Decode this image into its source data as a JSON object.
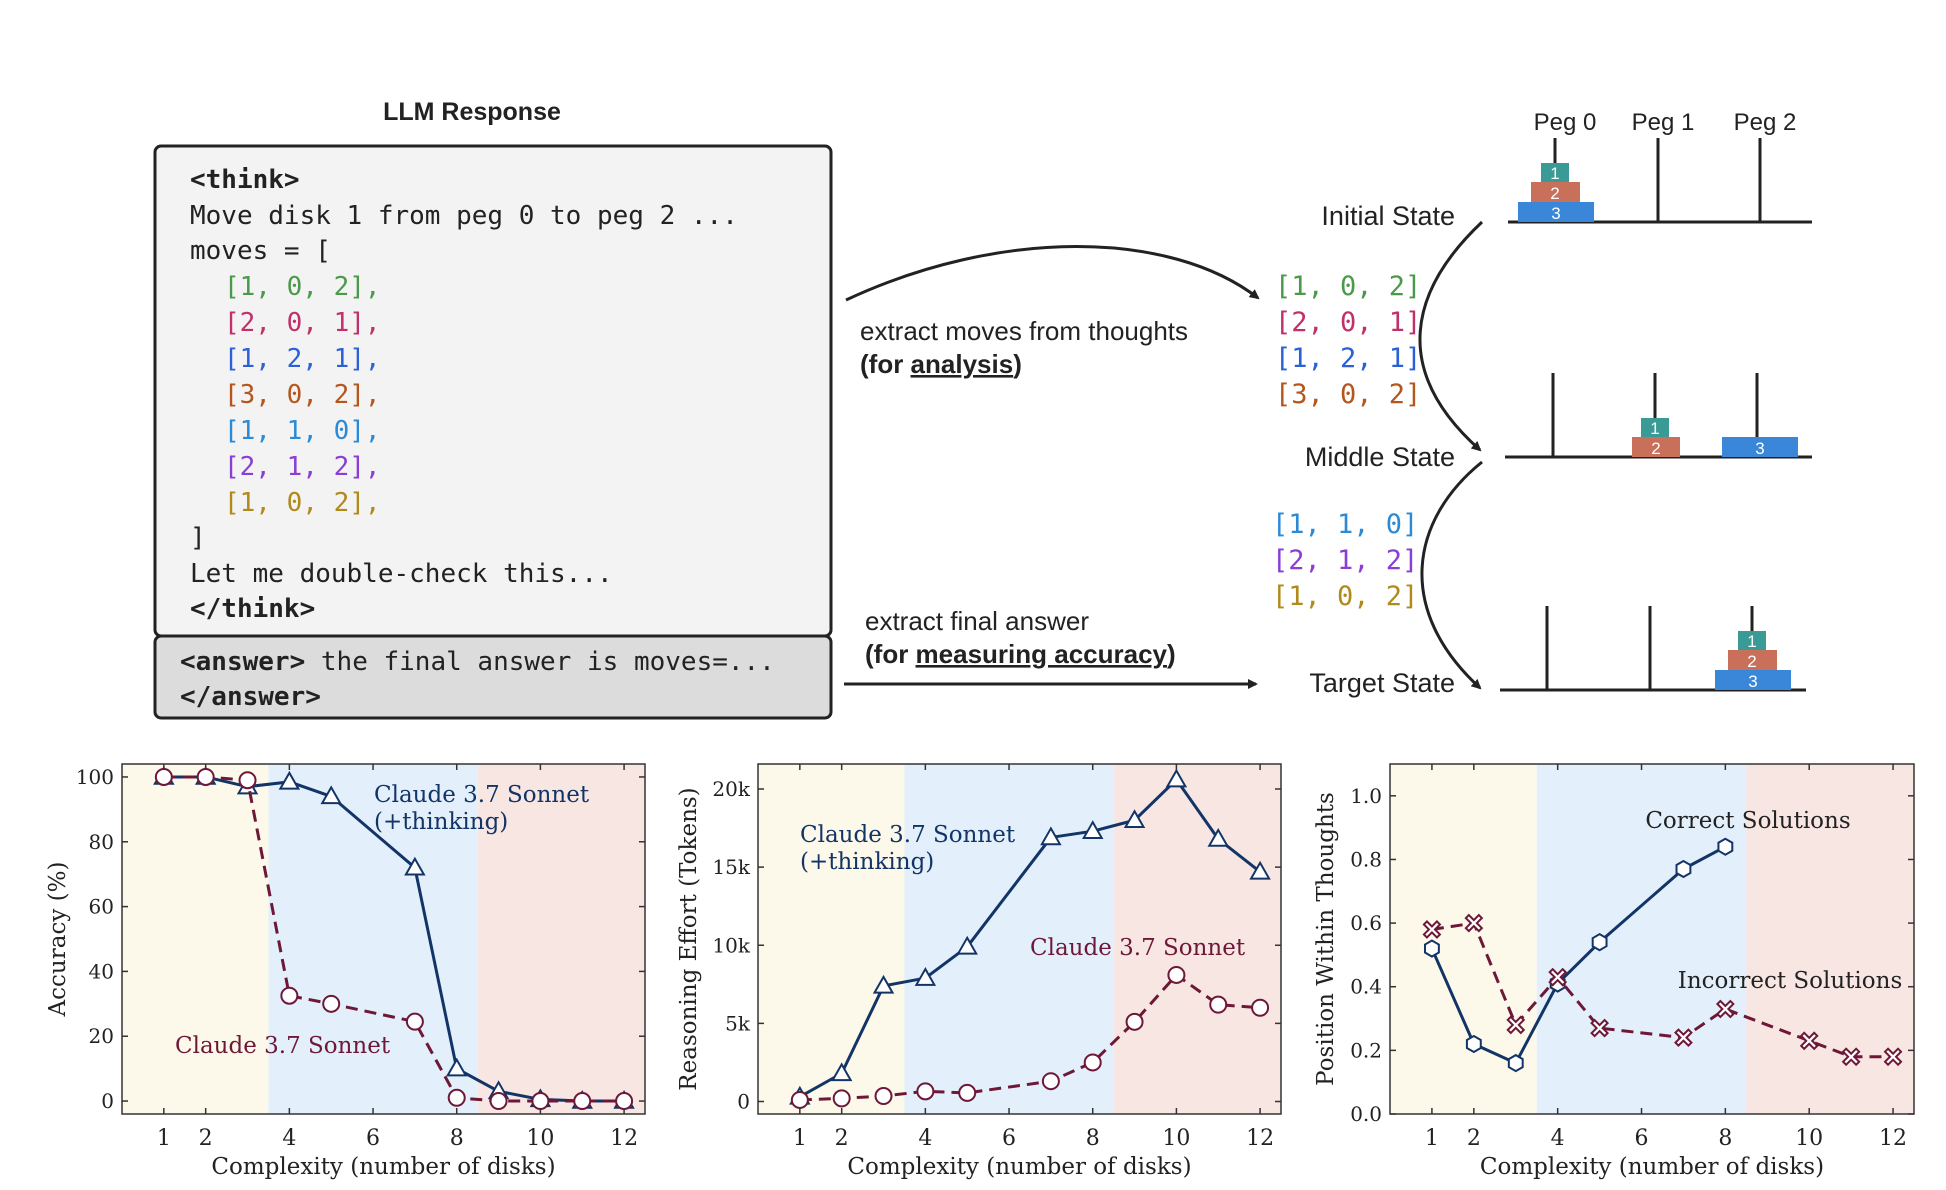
{
  "diagram": {
    "title": "LLM Response",
    "think_open": "<think>",
    "think_line1": "Move disk 1 from peg 0 to peg 2 ...",
    "moves_open": "moves = [",
    "moves": [
      {
        "text": "[1, 0, 2],",
        "color": "#4a9a4a"
      },
      {
        "text": "[2, 0, 1],",
        "color": "#c0306a"
      },
      {
        "text": "[1, 2, 1],",
        "color": "#2a62d6"
      },
      {
        "text": "[3, 0, 2],",
        "color": "#b5561c"
      },
      {
        "text": "[1, 1, 0],",
        "color": "#2a8ad6"
      },
      {
        "text": "[2, 1, 2],",
        "color": "#8a3ed6"
      },
      {
        "text": "[1, 0, 2],",
        "color": "#b08a1a"
      }
    ],
    "moves_close": "]",
    "double_check": "Let me double-check this...",
    "think_close": "</think>",
    "answer_tag": "<answer>",
    "answer_text": " the final answer is moves=...",
    "answer_close": "</answer>",
    "extract_moves_line1": "extract moves  from thoughts",
    "extract_moves_prefix": "(for ",
    "extract_moves_underlined": "analysis",
    "extract_moves_suffix": ")",
    "extract_final_line1": "extract final answer",
    "extract_final_prefix": "(for ",
    "extract_final_underlined": "measuring accuracy",
    "extract_final_suffix": ")",
    "pegs": [
      "Peg 0",
      "Peg 1",
      "Peg 2"
    ],
    "states": [
      "Initial State",
      "Middle State",
      "Target State"
    ],
    "first_moves": [
      {
        "text": "[1, 0, 2]",
        "color": "#4a9a4a"
      },
      {
        "text": "[2, 0, 1]",
        "color": "#c0306a"
      },
      {
        "text": "[1, 2, 1]",
        "color": "#2a62d6"
      },
      {
        "text": "[3, 0, 2]",
        "color": "#b5561c"
      }
    ],
    "second_moves": [
      {
        "text": "[1, 1, 0]",
        "color": "#2a8ad6"
      },
      {
        "text": "[2, 1, 2]",
        "color": "#8a3ed6"
      },
      {
        "text": "[1, 0, 2]",
        "color": "#b08a1a"
      }
    ],
    "disk_labels": [
      "1",
      "2",
      "3"
    ],
    "disk_colors": [
      "#3a9a96",
      "#c8705a",
      "#3a86d8"
    ]
  },
  "colors": {
    "thinking_series": "#123466",
    "base_series": "#6e1838",
    "region_easy": "#fcf8ea",
    "region_medium": "#e3f0fb",
    "region_hard": "#f8e6e3"
  },
  "chart_data": [
    {
      "type": "line",
      "xlabel": "Complexity (number of disks)",
      "ylabel": "Accuracy (%)",
      "xlim": [
        0,
        12.5
      ],
      "ylim": [
        -4,
        104
      ],
      "xticks": [
        1,
        2,
        4,
        6,
        8,
        10,
        12
      ],
      "yticks": [
        0,
        20,
        40,
        60,
        80,
        100
      ],
      "ytick_labels": [
        "0",
        "20",
        "40",
        "60",
        "80",
        "100"
      ],
      "regions": [
        [
          0,
          3.5,
          "easy"
        ],
        [
          3.5,
          8.5,
          "medium"
        ],
        [
          8.5,
          12.5,
          "hard"
        ]
      ],
      "series": [
        {
          "name": "Claude 3.7 Sonnet (+thinking)",
          "label_lines": [
            "Claude 3.7 Sonnet",
            "(+thinking)"
          ],
          "style": "solid",
          "marker": "triangle",
          "x": [
            1,
            2,
            3,
            4,
            5,
            7,
            8,
            9,
            10,
            11,
            12
          ],
          "y": [
            100,
            100,
            97,
            98.5,
            94,
            72,
            10,
            3,
            0.5,
            0,
            0
          ]
        },
        {
          "name": "Claude 3.7 Sonnet",
          "label_lines": [
            "Claude 3.7 Sonnet"
          ],
          "style": "dashed",
          "marker": "circle",
          "x": [
            1,
            2,
            3,
            4,
            5,
            7,
            8,
            9,
            10,
            11,
            12
          ],
          "y": [
            100,
            100,
            99,
            32.5,
            30,
            24.5,
            1,
            0,
            0,
            0,
            0
          ]
        }
      ]
    },
    {
      "type": "line",
      "xlabel": "Complexity (number of disks)",
      "ylabel": "Reasoning Effort (Tokens)",
      "xlim": [
        0,
        12.5
      ],
      "ylim": [
        -800,
        21600
      ],
      "xticks": [
        1,
        2,
        4,
        6,
        8,
        10,
        12
      ],
      "yticks": [
        0,
        5000,
        10000,
        15000,
        20000
      ],
      "ytick_labels": [
        "0",
        "5k",
        "10k",
        "15k",
        "20k"
      ],
      "regions": [
        [
          0,
          3.5,
          "easy"
        ],
        [
          3.5,
          8.5,
          "medium"
        ],
        [
          8.5,
          12.5,
          "hard"
        ]
      ],
      "series": [
        {
          "name": "Claude 3.7 Sonnet (+thinking)",
          "label_lines": [
            "Claude 3.7 Sonnet",
            "(+thinking)"
          ],
          "style": "solid",
          "marker": "triangle",
          "x": [
            1,
            2,
            3,
            4,
            5,
            7,
            8,
            9,
            10,
            11,
            12
          ],
          "y": [
            300,
            1800,
            7400,
            7900,
            9900,
            16900,
            17300,
            18000,
            20600,
            16800,
            14700
          ]
        },
        {
          "name": "Claude 3.7 Sonnet",
          "label_lines": [
            "Claude 3.7 Sonnet"
          ],
          "style": "dashed",
          "marker": "circle",
          "x": [
            1,
            2,
            3,
            4,
            5,
            7,
            8,
            9,
            10,
            11,
            12
          ],
          "y": [
            100,
            200,
            350,
            650,
            550,
            1300,
            2500,
            5100,
            8100,
            6200,
            6000
          ]
        }
      ]
    },
    {
      "type": "line",
      "xlabel": "Complexity (number of disks)",
      "ylabel": "Position Within Thoughts",
      "xlim": [
        0,
        12.5
      ],
      "ylim": [
        0,
        1.1
      ],
      "xticks": [
        1,
        2,
        4,
        6,
        8,
        10,
        12
      ],
      "yticks": [
        0,
        0.2,
        0.4,
        0.6,
        0.8,
        1.0
      ],
      "ytick_labels": [
        "0.0",
        "0.2",
        "0.4",
        "0.6",
        "0.8",
        "1.0"
      ],
      "regions": [
        [
          0,
          3.5,
          "easy"
        ],
        [
          3.5,
          8.5,
          "medium"
        ],
        [
          8.5,
          12.5,
          "hard"
        ]
      ],
      "series": [
        {
          "name": "Correct Solutions",
          "label_lines": [
            "Correct Solutions"
          ],
          "style": "solid",
          "marker": "hexagon",
          "x": [
            1,
            2,
            3,
            4,
            5,
            7,
            8
          ],
          "y": [
            0.52,
            0.22,
            0.16,
            0.41,
            0.54,
            0.77,
            0.84
          ]
        },
        {
          "name": "Incorrect Solutions",
          "label_lines": [
            "Incorrect Solutions"
          ],
          "style": "dashed",
          "marker": "cross",
          "x": [
            1,
            2,
            3,
            4,
            5,
            7,
            8,
            10,
            11,
            12
          ],
          "y": [
            0.58,
            0.6,
            0.28,
            0.43,
            0.27,
            0.24,
            0.33,
            0.23,
            0.18,
            0.18
          ]
        }
      ]
    }
  ]
}
